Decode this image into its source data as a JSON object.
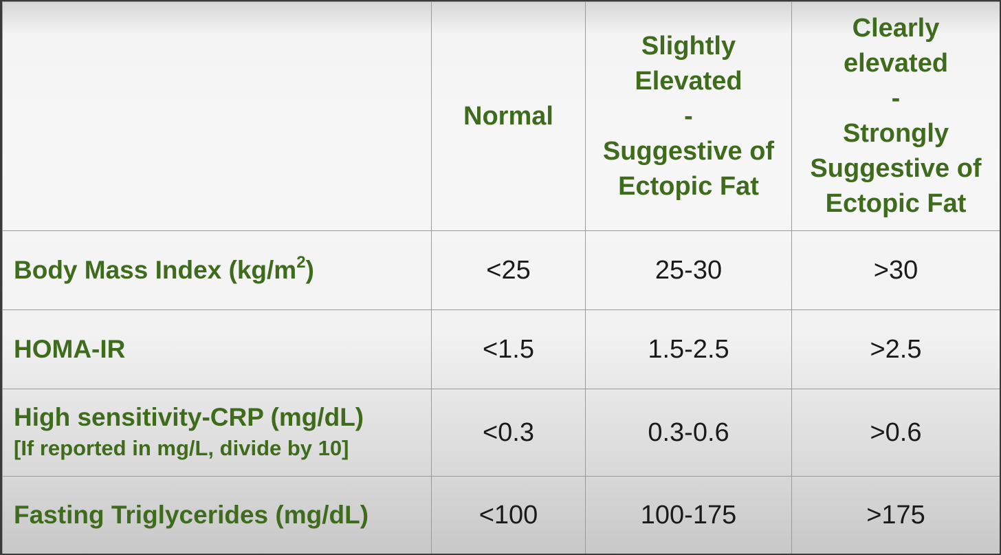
{
  "table": {
    "columns": [
      {
        "lines": []
      },
      {
        "lines": [
          "Normal"
        ]
      },
      {
        "lines": [
          "Slightly",
          "Elevated",
          "-",
          "Suggestive of",
          "Ectopic Fat"
        ]
      },
      {
        "lines": [
          "Clearly",
          "elevated",
          "-",
          "Strongly",
          "Suggestive of",
          "Ectopic Fat"
        ]
      }
    ],
    "rows": [
      {
        "label": "Body Mass Index (kg/m",
        "label_sup": "2",
        "label_suffix": ")",
        "values": [
          "<25",
          "25-30",
          ">30"
        ]
      },
      {
        "label": "HOMA-IR",
        "values": [
          "<1.5",
          "1.5-2.5",
          ">2.5"
        ]
      },
      {
        "label": "High sensitivity-CRP (mg/dL)",
        "sublabel": "[If reported in mg/L, divide by 10]",
        "values": [
          "<0.3",
          "0.3-0.6",
          ">0.6"
        ]
      },
      {
        "label": "Fasting Triglycerides (mg/dL)",
        "values": [
          "<100",
          "100-175",
          ">175"
        ]
      }
    ]
  },
  "colors": {
    "header_text": "#3f6b1d",
    "value_text": "#1a1a1a",
    "grid_line": "#9a9a9a"
  }
}
